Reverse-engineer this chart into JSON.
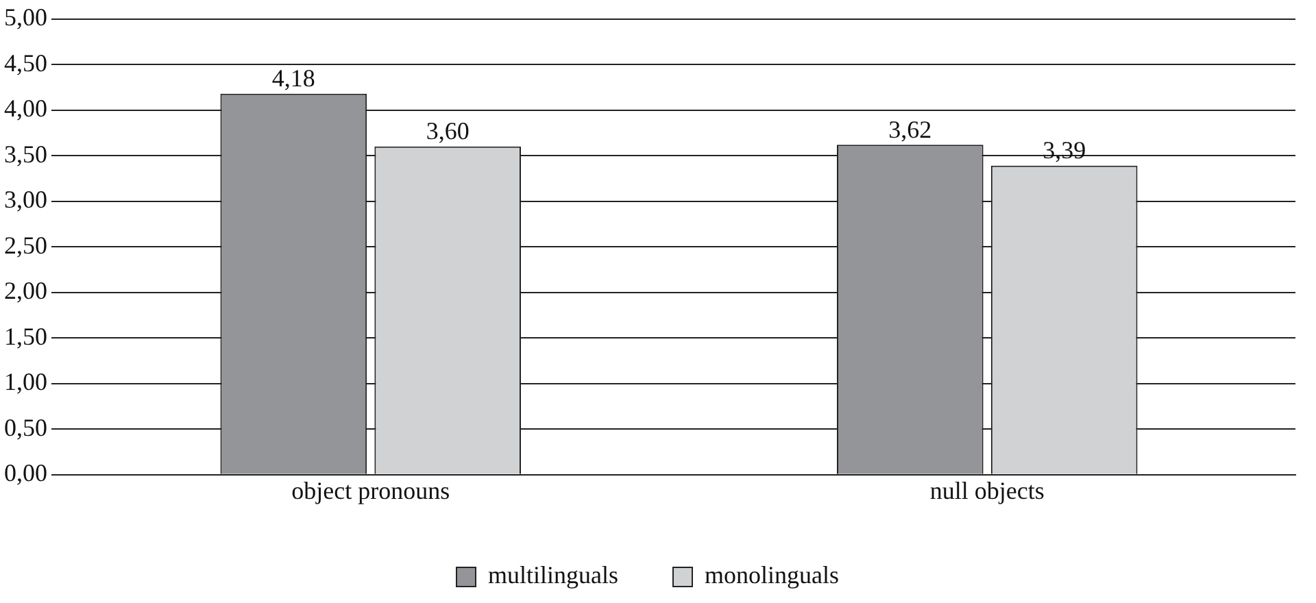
{
  "chart_data": {
    "type": "bar",
    "categories": [
      "object pronouns",
      "null objects"
    ],
    "series": [
      {
        "name": "multilinguals",
        "color": "#939598",
        "values": [
          4.18,
          3.62
        ],
        "value_labels": [
          "4,18",
          "3,62"
        ]
      },
      {
        "name": "monolinguals",
        "color": "#d1d2d4",
        "values": [
          3.6,
          3.39
        ],
        "value_labels": [
          "3,60",
          "3,39"
        ]
      }
    ],
    "ylim": [
      0,
      5
    ],
    "yticks": [
      {
        "value": 0,
        "label": "0,00"
      },
      {
        "value": 0.5,
        "label": "0,50"
      },
      {
        "value": 1,
        "label": "1,00"
      },
      {
        "value": 1.5,
        "label": "1,50"
      },
      {
        "value": 2,
        "label": "2,00"
      },
      {
        "value": 2.5,
        "label": "2,50"
      },
      {
        "value": 3,
        "label": "3,00"
      },
      {
        "value": 3.5,
        "label": "3,50"
      },
      {
        "value": 4,
        "label": "4,00"
      },
      {
        "value": 4.5,
        "label": "4,50"
      },
      {
        "value": 5,
        "label": "5,00"
      }
    ],
    "grid": "y",
    "legend": "bottom"
  }
}
